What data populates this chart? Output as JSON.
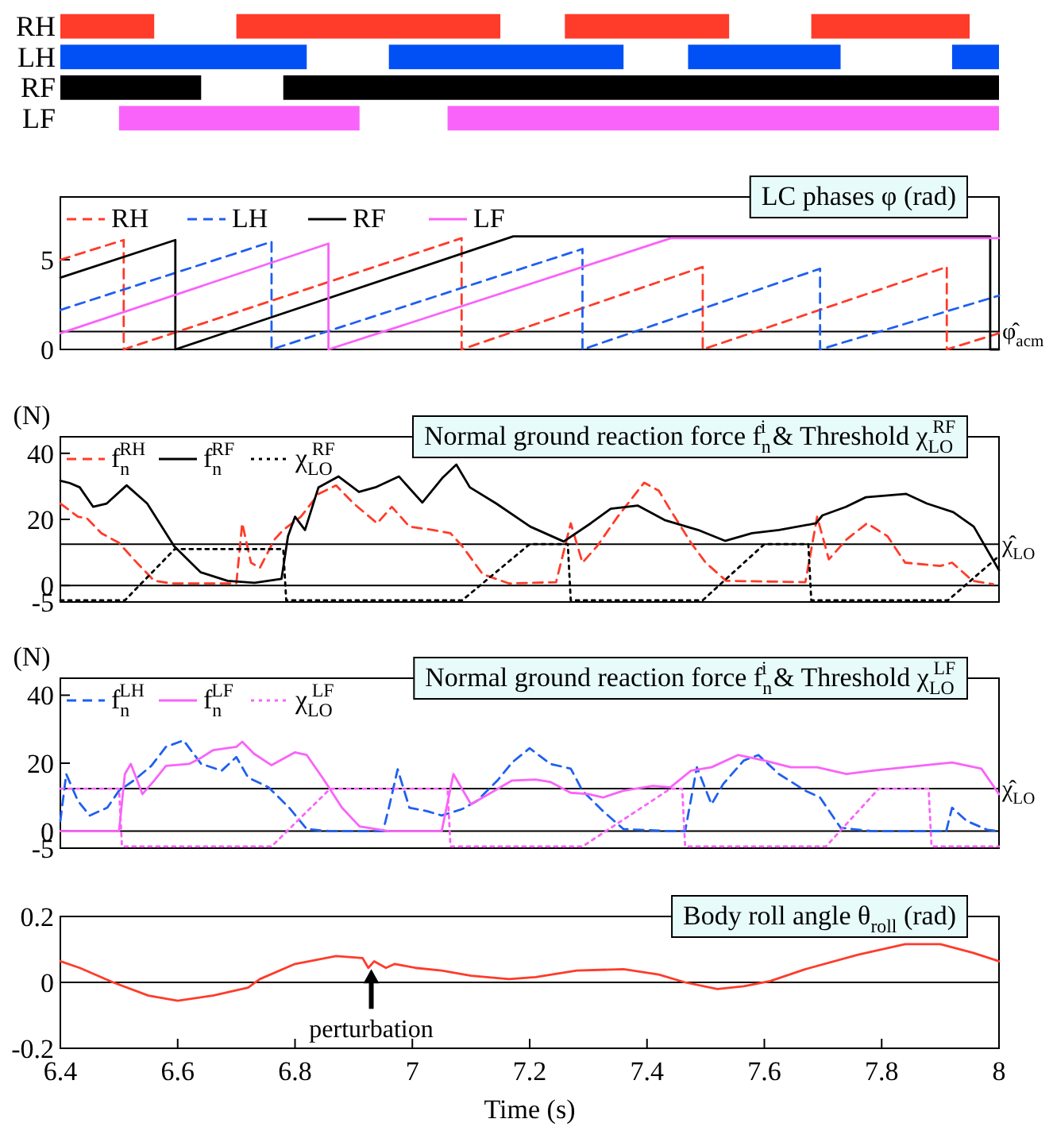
{
  "chart_data": [
    {
      "type": "bar",
      "orientation": "horizontal",
      "categories": [
        "RH",
        "LH",
        "RF",
        "LF"
      ],
      "xlim": [
        6.4,
        8
      ],
      "tick_labels": "y",
      "series": [
        {
          "colors": [
            "#ff3b2a",
            "#0050f5",
            "#000000",
            "#f963f9"
          ],
          "base": [
            6.4,
            6.4,
            6.4,
            6.5
          ],
          "values": [
            0.16,
            0.42,
            0.24,
            0.41
          ]
        },
        {
          "colors": [
            "#ff3b2a",
            "#0050f5",
            "#000000",
            "#f963f9"
          ],
          "base": [
            6.7,
            6.96,
            6.78,
            7.06
          ],
          "values": [
            0.45,
            0.4,
            1.22,
            0.94
          ]
        },
        {
          "colors": [
            "#ff3b2a",
            "#0050f5",
            null,
            null
          ],
          "base": [
            7.26,
            7.47,
            null,
            null
          ],
          "values": [
            0.28,
            0.26,
            null,
            null
          ]
        },
        {
          "colors": [
            "#ff3b2a",
            "#0050f5",
            null,
            null
          ],
          "base": [
            7.68,
            7.92,
            null,
            null
          ],
          "values": [
            0.27,
            0.08,
            null,
            null
          ]
        }
      ]
    },
    {
      "type": "line",
      "title": "LC phases  φ (rad)",
      "xlim": [
        6.4,
        8
      ],
      "ylim": [
        0,
        8.5
      ],
      "yticks": [
        0,
        5
      ],
      "tick_labels": "y",
      "legend": "top",
      "ref_lines": [
        {
          "axis": "y",
          "value": 1,
          "label": "φ̂$_{acm}$"
        }
      ],
      "series": [
        {
          "name": "RH",
          "color": "#ff3b2a",
          "line_style": "dashed",
          "x": [
            6.4,
            6.508,
            6.508,
            7.084,
            7.084,
            7.495,
            7.495,
            7.911,
            7.911,
            8
          ],
          "values": [
            5.0,
            6.1,
            0,
            6.2,
            0,
            4.6,
            0,
            4.6,
            0,
            0.9
          ]
        },
        {
          "name": "LH",
          "color": "#1f5ff0",
          "line_style": "dashed",
          "x": [
            6.4,
            6.76,
            6.76,
            7.29,
            7.29,
            7.695,
            7.695,
            8
          ],
          "values": [
            2.2,
            6.0,
            0,
            5.6,
            0,
            4.5,
            0,
            3.0
          ]
        },
        {
          "name": "RF",
          "color": "#000000",
          "line_style": "solid",
          "x": [
            6.4,
            6.596,
            6.596,
            7.172,
            7.985,
            7.985,
            8
          ],
          "values": [
            4.0,
            6.1,
            0,
            6.3,
            6.3,
            0,
            0
          ]
        },
        {
          "name": "LF",
          "color": "#f963f9",
          "line_style": "solid",
          "x": [
            6.4,
            6.857,
            6.857,
            7.441,
            8
          ],
          "values": [
            0.9,
            5.9,
            0,
            6.2,
            6.2
          ]
        }
      ]
    },
    {
      "type": "line",
      "title": "Normal ground reaction force f$_{n}$$^{i}$ & Threshold χ$_{LO}$$^{RF}$",
      "ylabel": "(N)",
      "xlim": [
        6.4,
        8
      ],
      "ylim": [
        -5,
        45
      ],
      "yticks": [
        -5,
        0,
        20,
        40
      ],
      "tick_labels": "y",
      "legend": "top left",
      "ref_lines": [
        {
          "axis": "y",
          "value": 0
        },
        {
          "axis": "y",
          "value": 12.5,
          "label": "χ̂$_{LO}$"
        }
      ],
      "series": [
        {
          "name": "f$_{n}$$^{RH}$",
          "color": "#ff3b2a",
          "line_style": "dashed",
          "x": [
            6.4,
            6.43,
            6.445,
            6.47,
            6.5,
            6.525,
            6.56,
            6.59,
            6.7,
            6.71,
            6.725,
            6.74,
            6.765,
            6.78,
            6.81,
            6.84,
            6.87,
            6.9,
            6.94,
            6.965,
            6.995,
            7.035,
            7.065,
            7.085,
            7.12,
            7.165,
            7.245,
            7.27,
            7.29,
            7.315,
            7.35,
            7.395,
            7.42,
            7.44,
            7.475,
            7.5,
            7.535,
            7.67,
            7.69,
            7.71,
            7.74,
            7.775,
            7.81,
            7.84,
            7.9,
            7.92,
            7.955,
            7.99
          ],
          "values": [
            24.8,
            20.8,
            20.4,
            15.8,
            12.9,
            7.9,
            1.4,
            0.6,
            0.6,
            18.8,
            6.9,
            5.3,
            13.9,
            16.8,
            20.8,
            27.7,
            30.3,
            24.8,
            18.8,
            23.8,
            17.8,
            16.8,
            15.8,
            11.9,
            3.4,
            0.6,
            1.0,
            18.8,
            6.9,
            11.9,
            20.8,
            31.1,
            28.7,
            22.8,
            12.9,
            6.9,
            1.4,
            1.0,
            20.8,
            7.9,
            13.9,
            18.8,
            14.9,
            6.9,
            5.9,
            6.9,
            1.4,
            0.4
          ]
        },
        {
          "name": "f$_{n}$$^{RF}$",
          "color": "#000000",
          "line_style": "solid",
          "x": [
            6.4,
            6.416,
            6.433,
            6.456,
            6.479,
            6.513,
            6.548,
            6.594,
            6.639,
            6.685,
            6.731,
            6.777,
            6.788,
            6.8,
            6.817,
            6.84,
            6.874,
            6.909,
            6.937,
            6.977,
            7.017,
            7.052,
            7.075,
            7.098,
            7.143,
            7.201,
            7.258,
            7.304,
            7.338,
            7.384,
            7.43,
            7.487,
            7.533,
            7.579,
            7.625,
            7.688,
            7.699,
            7.739,
            7.773,
            7.842,
            7.877,
            7.922,
            7.957,
            8
          ],
          "values": [
            31.7,
            31,
            29.7,
            23.8,
            24.8,
            30.3,
            24.8,
            11.9,
            4,
            1.4,
            0.8,
            2,
            14.9,
            20.8,
            16.8,
            29.7,
            33,
            28.3,
            29.7,
            33,
            25.1,
            32.7,
            36.6,
            29.7,
            24.8,
            17.8,
            13.3,
            18.8,
            23.2,
            24.2,
            19.8,
            16.8,
            13.5,
            15.8,
            16.8,
            18.8,
            21.2,
            23.8,
            26.7,
            27.7,
            24.8,
            22.2,
            17.8,
            4.6
          ]
        },
        {
          "name": "χ$_{LO}$$^{RF}$",
          "color": "#000000",
          "line_style": "dotted",
          "x": [
            6.4,
            6.51,
            6.595,
            6.78,
            6.785,
            7.085,
            7.2,
            7.265,
            7.27,
            7.495,
            7.6,
            7.675,
            7.68,
            7.913,
            8
          ],
          "values": [
            -4.5,
            -4.5,
            11,
            11,
            -4.5,
            -4.5,
            12.5,
            12.5,
            -4.5,
            -4.5,
            12.5,
            12.5,
            -4.5,
            -4.5,
            8.9
          ]
        }
      ]
    },
    {
      "type": "line",
      "title": "Normal ground reaction force f$_{n}$$^{i}$ & Threshold χ$_{LO}$$^{LF}$",
      "ylabel": "(N)",
      "xlim": [
        6.4,
        8
      ],
      "ylim": [
        -5,
        45
      ],
      "yticks": [
        -5,
        0,
        20,
        40
      ],
      "tick_labels": "y",
      "legend": "top left",
      "ref_lines": [
        {
          "axis": "y",
          "value": 0
        },
        {
          "axis": "y",
          "value": 12.5,
          "label": "χ̂$_{LO}$"
        }
      ],
      "series": [
        {
          "name": "f$_{n}$$^{LH}$",
          "color": "#1f5ff0",
          "line_style": "dashed",
          "x": [
            6.4,
            6.41,
            6.43,
            6.45,
            6.48,
            6.5,
            6.525,
            6.555,
            6.58,
            6.61,
            6.64,
            6.675,
            6.7,
            6.72,
            6.755,
            6.79,
            6.82,
            6.86,
            6.95,
            6.96,
            6.975,
            6.995,
            7.025,
            7.05,
            7.085,
            7.11,
            7.145,
            7.17,
            7.2,
            7.235,
            7.27,
            7.29,
            7.325,
            7.36,
            7.44,
            7.465,
            7.485,
            7.51,
            7.53,
            7.565,
            7.59,
            7.625,
            7.67,
            7.695,
            7.73,
            7.785,
            7.91,
            7.92,
            7.945,
            7.98,
            8
          ],
          "values": [
            3,
            16.8,
            8.9,
            4.6,
            6.9,
            11.9,
            14.9,
            19.2,
            24.8,
            26.7,
            19.8,
            17.8,
            21.8,
            15.8,
            12.9,
            6.9,
            0.6,
            0,
            0,
            6.9,
            18.2,
            6.9,
            5.9,
            4.6,
            6.5,
            8.9,
            14.9,
            20.2,
            24.4,
            19.8,
            18.4,
            11.9,
            5.9,
            0.6,
            0,
            0,
            18.8,
            7.9,
            13.9,
            20.8,
            22.4,
            16.8,
            11.9,
            9.9,
            1,
            0,
            0,
            6.9,
            3,
            0.4,
            0
          ]
        },
        {
          "name": "f$_{n}$$^{LF}$",
          "color": "#f963f9",
          "line_style": "solid",
          "x": [
            6.4,
            6.5,
            6.51,
            6.52,
            6.54,
            6.56,
            6.58,
            6.62,
            6.64,
            6.66,
            6.7,
            6.71,
            6.73,
            6.76,
            6.8,
            6.82,
            6.85,
            6.88,
            6.91,
            6.96,
            7.05,
            7.07,
            7.1,
            7.13,
            7.17,
            7.21,
            7.235,
            7.27,
            7.3,
            7.325,
            7.36,
            7.41,
            7.44,
            7.475,
            7.51,
            7.555,
            7.6,
            7.645,
            7.69,
            7.74,
            7.785,
            7.84,
            7.92,
            7.97,
            8
          ],
          "values": [
            0,
            0,
            16.8,
            19.8,
            10.9,
            14.9,
            19.2,
            19.8,
            21.6,
            23.8,
            24.8,
            26.3,
            22.8,
            19.4,
            23.2,
            22.4,
            14.9,
            6.9,
            1.4,
            0,
            0,
            16.8,
            7.9,
            10.9,
            14.9,
            15.2,
            14.5,
            11.3,
            10.9,
            9.9,
            11.9,
            13.3,
            12.9,
            17.8,
            18.8,
            22.4,
            20.8,
            18.8,
            18.8,
            16.8,
            17.8,
            18.8,
            20.2,
            18.4,
            10.9
          ]
        },
        {
          "name": "χ$_{LO}$$^{LF}$",
          "color": "#f963f9",
          "line_style": "dotted",
          "x": [
            6.4,
            6.5,
            6.505,
            6.76,
            6.86,
            7.06,
            7.065,
            7.29,
            7.44,
            7.46,
            7.465,
            7.705,
            7.795,
            7.88,
            7.885,
            8
          ],
          "values": [
            12.5,
            12.5,
            -4.5,
            -4.5,
            12.5,
            12.5,
            -4.5,
            -4.5,
            12.5,
            12.5,
            -4.5,
            -4.5,
            12.5,
            12.5,
            -4.5,
            -4.5
          ]
        }
      ]
    },
    {
      "type": "line",
      "title": "Body roll angle θ$_{roll}$ (rad)",
      "xlabel": "Time (s)",
      "xlim": [
        6.4,
        8
      ],
      "ylim": [
        -0.2,
        0.2
      ],
      "yticks": [
        -0.2,
        0,
        0.2
      ],
      "xticks": [
        6.4,
        6.6,
        6.8,
        7,
        7.2,
        7.4,
        7.6,
        7.8,
        8
      ],
      "ref_lines": [
        {
          "axis": "y",
          "value": 0
        }
      ],
      "annotations": [
        {
          "text": "perturbation",
          "x": 6.93,
          "y": 0.045
        }
      ],
      "series": [
        {
          "color": "#ff3b2a",
          "line_style": "solid",
          "x": [
            6.4,
            6.433,
            6.49,
            6.55,
            6.6,
            6.66,
            6.72,
            6.74,
            6.8,
            6.87,
            6.915,
            6.925,
            6.935,
            6.955,
            6.97,
            7.005,
            7.05,
            7.1,
            7.165,
            7.21,
            7.28,
            7.36,
            7.42,
            7.465,
            7.52,
            7.565,
            7.61,
            7.67,
            7.76,
            7.84,
            7.9,
            7.955,
            8
          ],
          "values": [
            0.064,
            0.044,
            0,
            -0.04,
            -0.056,
            -0.04,
            -0.016,
            0.01,
            0.056,
            0.08,
            0.074,
            0.044,
            0.064,
            0.044,
            0.056,
            0.044,
            0.036,
            0.02,
            0.01,
            0.016,
            0.036,
            0.04,
            0.024,
            0,
            -0.02,
            -0.012,
            0.004,
            0.04,
            0.084,
            0.116,
            0.116,
            0.09,
            0.064
          ]
        }
      ]
    }
  ]
}
